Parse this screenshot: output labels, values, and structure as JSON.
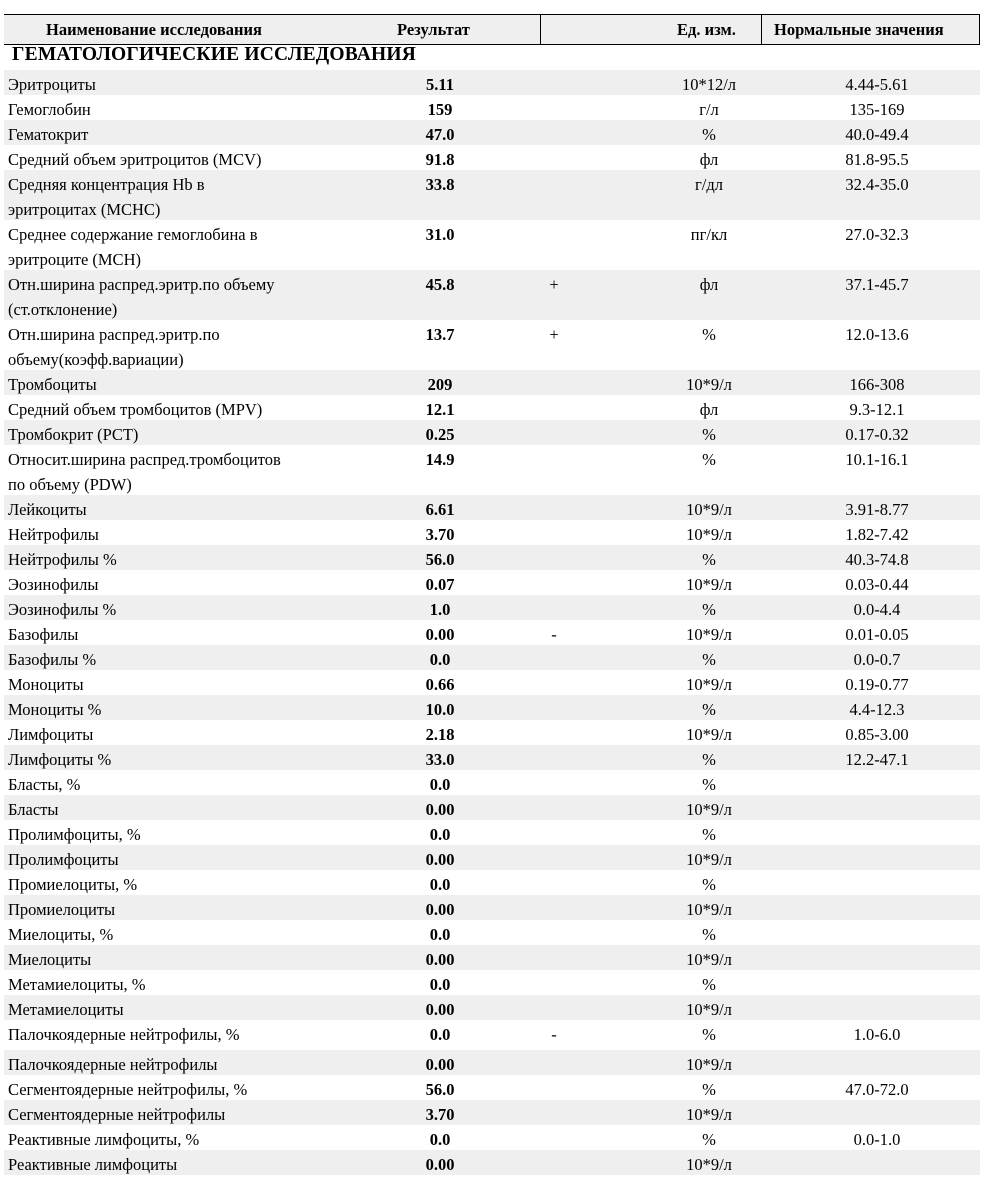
{
  "header": {
    "name": "Наименование исследования",
    "result": "Результат",
    "unit": "Ед. изм.",
    "norm": "Нормальные значения"
  },
  "section_title": "ГЕМАТОЛОГИЧЕСКИЕ ИССЛЕДОВАНИЯ",
  "rows": [
    {
      "name_lines": [
        "Эритроциты"
      ],
      "result": "5.11",
      "flag": "",
      "unit": "10*12/л",
      "norm": "4.44-5.61"
    },
    {
      "name_lines": [
        "Гемоглобин"
      ],
      "result": "159",
      "flag": "",
      "unit": "г/л",
      "norm": "135-169"
    },
    {
      "name_lines": [
        "Гематокрит"
      ],
      "result": "47.0",
      "flag": "",
      "unit": "%",
      "norm": "40.0-49.4"
    },
    {
      "name_lines": [
        "Средний объем эритроцитов (MCV)"
      ],
      "result": "91.8",
      "flag": "",
      "unit": "фл",
      "norm": "81.8-95.5"
    },
    {
      "name_lines": [
        "Средняя концентрация Hb в",
        "эритроцитах (MCHC)"
      ],
      "result": "33.8",
      "flag": "",
      "unit": "г/дл",
      "norm": "32.4-35.0"
    },
    {
      "name_lines": [
        "Среднее содержание гемоглобина в",
        "эритроците (MCH)"
      ],
      "result": "31.0",
      "flag": "",
      "unit": "пг/кл",
      "norm": "27.0-32.3"
    },
    {
      "name_lines": [
        "Отн.ширина распред.эритр.по объему",
        "(ст.отклонение)"
      ],
      "result": "45.8",
      "flag": "+",
      "unit": "фл",
      "norm": "37.1-45.7"
    },
    {
      "name_lines": [
        "Отн.ширина распред.эритр.по",
        "объему(коэфф.вариации)"
      ],
      "result": "13.7",
      "flag": "+",
      "unit": "%",
      "norm": "12.0-13.6"
    },
    {
      "name_lines": [
        "Тромбоциты"
      ],
      "result": "209",
      "flag": "",
      "unit": "10*9/л",
      "norm": "166-308"
    },
    {
      "name_lines": [
        "Средний объем тромбоцитов (MPV)"
      ],
      "result": "12.1",
      "flag": "",
      "unit": "фл",
      "norm": "9.3-12.1"
    },
    {
      "name_lines": [
        "Тромбокрит (PCT)"
      ],
      "result": "0.25",
      "flag": "",
      "unit": "%",
      "norm": "0.17-0.32"
    },
    {
      "name_lines": [
        "Относит.ширина распред.тромбоцитов",
        "по объему (PDW)"
      ],
      "result": "14.9",
      "flag": "",
      "unit": "%",
      "norm": "10.1-16.1"
    },
    {
      "name_lines": [
        "Лейкоциты"
      ],
      "result": "6.61",
      "flag": "",
      "unit": "10*9/л",
      "norm": "3.91-8.77"
    },
    {
      "name_lines": [
        "Нейтрофилы"
      ],
      "result": "3.70",
      "flag": "",
      "unit": "10*9/л",
      "norm": "1.82-7.42"
    },
    {
      "name_lines": [
        "Нейтрофилы %"
      ],
      "result": "56.0",
      "flag": "",
      "unit": "%",
      "norm": "40.3-74.8"
    },
    {
      "name_lines": [
        "Эозинофилы"
      ],
      "result": "0.07",
      "flag": "",
      "unit": "10*9/л",
      "norm": "0.03-0.44"
    },
    {
      "name_lines": [
        "Эозинофилы %"
      ],
      "result": "1.0",
      "flag": "",
      "unit": "%",
      "norm": "0.0-4.4"
    },
    {
      "name_lines": [
        "Базофилы"
      ],
      "result": "0.00",
      "flag": "-",
      "unit": "10*9/л",
      "norm": "0.01-0.05"
    },
    {
      "name_lines": [
        "Базофилы %"
      ],
      "result": "0.0",
      "flag": "",
      "unit": "%",
      "norm": "0.0-0.7"
    },
    {
      "name_lines": [
        "Моноциты"
      ],
      "result": "0.66",
      "flag": "",
      "unit": "10*9/л",
      "norm": "0.19-0.77"
    },
    {
      "name_lines": [
        "Моноциты %"
      ],
      "result": "10.0",
      "flag": "",
      "unit": "%",
      "norm": "4.4-12.3"
    },
    {
      "name_lines": [
        "Лимфоциты"
      ],
      "result": "2.18",
      "flag": "",
      "unit": "10*9/л",
      "norm": "0.85-3.00"
    },
    {
      "name_lines": [
        "Лимфоциты %"
      ],
      "result": "33.0",
      "flag": "",
      "unit": "%",
      "norm": "12.2-47.1"
    },
    {
      "name_lines": [
        "Бласты, %"
      ],
      "result": "0.0",
      "flag": "",
      "unit": "%",
      "norm": ""
    },
    {
      "name_lines": [
        "Бласты"
      ],
      "result": "0.00",
      "flag": "",
      "unit": "10*9/л",
      "norm": ""
    },
    {
      "name_lines": [
        "Пролимфоциты, %"
      ],
      "result": "0.0",
      "flag": "",
      "unit": "%",
      "norm": ""
    },
    {
      "name_lines": [
        "Пролимфоциты"
      ],
      "result": "0.00",
      "flag": "",
      "unit": "10*9/л",
      "norm": ""
    },
    {
      "name_lines": [
        "Промиелоциты, %"
      ],
      "result": "0.0",
      "flag": "",
      "unit": "%",
      "norm": ""
    },
    {
      "name_lines": [
        "Промиелоциты"
      ],
      "result": "0.00",
      "flag": "",
      "unit": "10*9/л",
      "norm": ""
    },
    {
      "name_lines": [
        "Миелоциты, %"
      ],
      "result": "0.0",
      "flag": "",
      "unit": "%",
      "norm": ""
    },
    {
      "name_lines": [
        "Миелоциты"
      ],
      "result": "0.00",
      "flag": "",
      "unit": "10*9/л",
      "norm": ""
    },
    {
      "name_lines": [
        "Метамиелоциты, %"
      ],
      "result": "0.0",
      "flag": "",
      "unit": "%",
      "norm": ""
    },
    {
      "name_lines": [
        "Метамиелоциты"
      ],
      "result": "0.00",
      "flag": "",
      "unit": "10*9/л",
      "norm": ""
    },
    {
      "name_lines": [
        "Палочкоядерные нейтрофилы, %"
      ],
      "result": "0.0",
      "flag": "-",
      "unit": "%",
      "norm": "1.0-6.0"
    },
    {
      "name_lines": [
        "Палочкоядерные нейтрофилы"
      ],
      "result": "0.00",
      "flag": "",
      "unit": "10*9/л",
      "norm": ""
    },
    {
      "name_lines": [
        "Сегментоядерные нейтрофилы, %"
      ],
      "result": "56.0",
      "flag": "",
      "unit": "%",
      "norm": "47.0-72.0"
    },
    {
      "name_lines": [
        "Сегментоядерные нейтрофилы"
      ],
      "result": "3.70",
      "flag": "",
      "unit": "10*9/л",
      "norm": ""
    },
    {
      "name_lines": [
        "Реактивные лимфоциты, %"
      ],
      "result": "0.0",
      "flag": "",
      "unit": "%",
      "norm": "0.0-1.0"
    },
    {
      "name_lines": [
        "Реактивные лимфоциты"
      ],
      "result": "0.00",
      "flag": "",
      "unit": "10*9/л",
      "norm": ""
    }
  ]
}
